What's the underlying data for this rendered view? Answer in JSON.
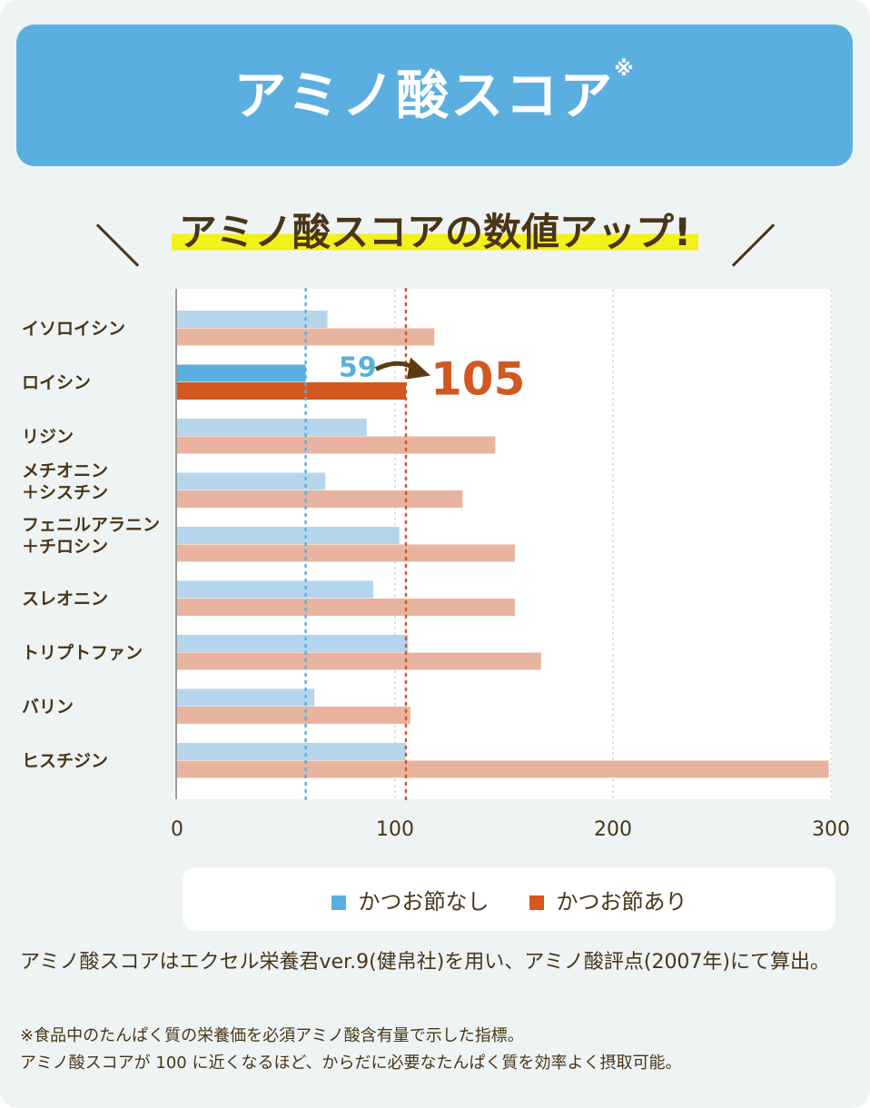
{
  "header": {
    "title": "アミノ酸スコア",
    "mark": "※"
  },
  "subtitle": "アミノ酸スコアの数値アップ!",
  "chart_data": {
    "type": "bar",
    "orientation": "horizontal",
    "categories": [
      "イソロイシン",
      "ロイシン",
      "リジン",
      "メチオニン\n＋シスチン",
      "フェニルアラニン\n＋チロシン",
      "スレオニン",
      "トリプトファン",
      "バリン",
      "ヒスチジン"
    ],
    "series": [
      {
        "name": "かつお節なし",
        "color": "#b5d5ec",
        "highlight_color": "#5aafe0",
        "values": [
          69,
          59,
          87,
          68,
          102,
          90,
          106,
          63,
          105
        ]
      },
      {
        "name": "かつお節あり",
        "color": "#e8b4a0",
        "highlight_color": "#d2581f",
        "values": [
          118,
          105,
          146,
          131,
          155,
          155,
          167,
          107,
          299
        ]
      }
    ],
    "highlight_category": "ロイシン",
    "annotation": {
      "from": "59",
      "to": "105"
    },
    "reference_lines": [
      {
        "value": 59,
        "color": "#5aafe0"
      },
      {
        "value": 105,
        "color": "#d2581f"
      }
    ],
    "xlim": [
      0,
      300
    ],
    "xticks": [
      "0",
      "100",
      "200",
      "300"
    ],
    "grid": true,
    "legend": "bottom"
  },
  "legend": {
    "items": [
      "かつお節なし",
      "かつお節あり"
    ]
  },
  "notes": {
    "main": "アミノ酸スコアはエクセル栄養君ver.9(健帛社)を用い、アミノ酸評点(2007年)にて算出。",
    "line1": "※食品中のたんぱく質の栄養価を必須アミノ酸含有量で示した指標。",
    "line2": "アミノ酸スコアが 100 に近くなるほど、からだに必要なたんぱく質を効率よく摂取可能。"
  }
}
